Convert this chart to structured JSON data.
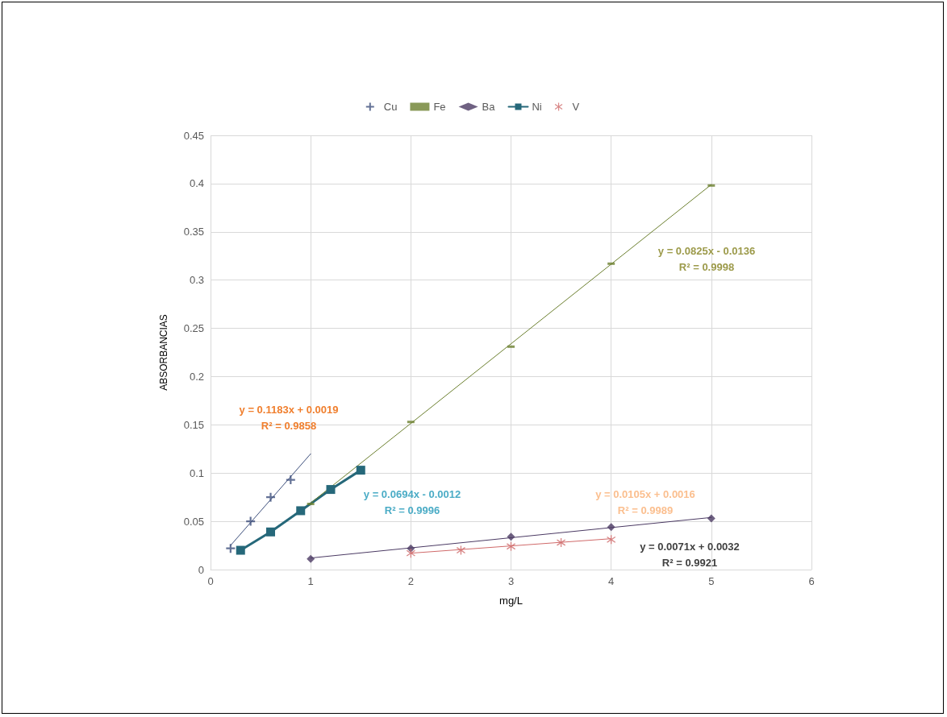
{
  "chart_data": {
    "type": "scatter",
    "xlabel": "mg/L",
    "ylabel": "ABSORBANCIAS",
    "xlim": [
      0,
      6
    ],
    "xticks": [
      0,
      1,
      2,
      3,
      4,
      5,
      6
    ],
    "ylim": [
      0,
      0.45
    ],
    "yticks": [
      0,
      0.05,
      0.1,
      0.15,
      0.2,
      0.25,
      0.3,
      0.35,
      0.4,
      0.45
    ],
    "grid": true,
    "legend": "top",
    "series": [
      {
        "name": "Cu",
        "marker": "cross",
        "color": "#3d4f7c",
        "x": [
          0.2,
          0.4,
          0.6,
          0.8
        ],
        "values": [
          0.022,
          0.05,
          0.075,
          0.093
        ]
      },
      {
        "name": "Fe",
        "marker": "square",
        "color": "#6b7f2e",
        "x": [
          1,
          2,
          3,
          4,
          5
        ],
        "values": [
          0.068,
          0.153,
          0.231,
          0.317,
          0.398
        ]
      },
      {
        "name": "Ba",
        "marker": "diamond",
        "color": "#4b3a63",
        "x": [
          1,
          2,
          3,
          4,
          5
        ],
        "values": [
          0.011,
          0.022,
          0.034,
          0.044,
          0.053
        ]
      },
      {
        "name": "Ni",
        "type": "line",
        "marker": "square",
        "color": "#26687a",
        "x": [
          0.3,
          0.6,
          0.9,
          1.2,
          1.5
        ],
        "values": [
          0.02,
          0.039,
          0.061,
          0.083,
          0.103
        ]
      },
      {
        "name": "V",
        "marker": "star",
        "color": "#d06a6a",
        "x": [
          2,
          2.5,
          3,
          3.5,
          4
        ],
        "values": [
          0.017,
          0.02,
          0.024,
          0.028,
          0.031
        ]
      },
      {
        "type": "line",
        "marker": "none",
        "color": "#3d4f7c",
        "x": [
          0.2,
          1.0
        ],
        "values": [
          0.025,
          0.12
        ]
      },
      {
        "type": "line",
        "marker": "none",
        "color": "#6b7f2e",
        "x": [
          1,
          5
        ],
        "values": [
          0.069,
          0.399
        ]
      },
      {
        "type": "line",
        "marker": "none",
        "color": "#4b3a63",
        "x": [
          1,
          5
        ],
        "values": [
          0.012,
          0.054
        ]
      },
      {
        "type": "line",
        "marker": "none",
        "color": "#d06a6a",
        "x": [
          2,
          4
        ],
        "values": [
          0.017,
          0.032
        ]
      }
    ],
    "annotations": [
      "y = 0.1183x + 0.0019\nR² = 0.9858",
      "y = 0.0694x - 0.0012\nR² = 0.9996",
      "y = 0.0825x - 0.0136\nR² = 0.9998",
      "y = 0.0105x + 0.0016\nR² = 0.9989",
      "y = 0.0071x + 0.0032\nR² = 0.9921"
    ]
  }
}
